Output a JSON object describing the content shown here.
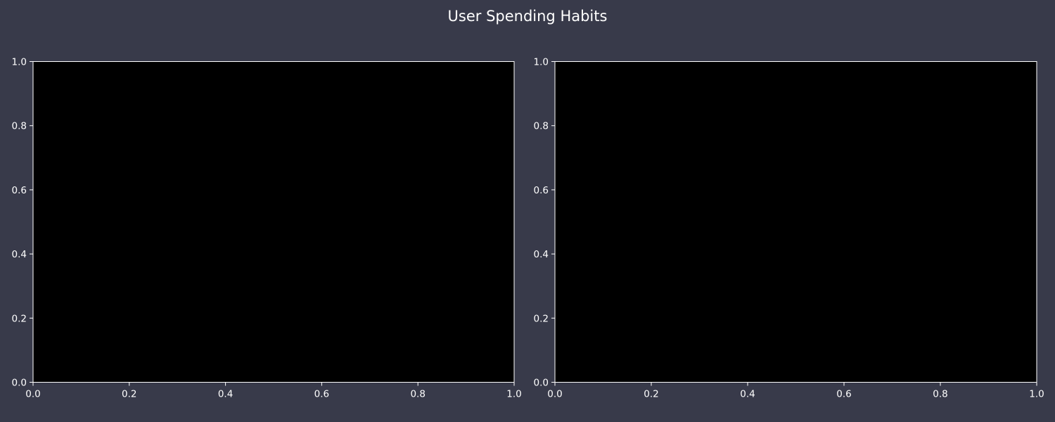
{
  "figure": {
    "title": "User Spending Habits",
    "background": "#383a4a",
    "axes_face": "#000000",
    "axes_edge": "#ffffff",
    "text_color": "#ffffff"
  },
  "chart_data": [
    {
      "type": "scatter",
      "title": "",
      "xlabel": "",
      "ylabel": "",
      "xlim": [
        0.0,
        1.0
      ],
      "ylim": [
        0.0,
        1.0
      ],
      "xticks": [
        "0.0",
        "0.2",
        "0.4",
        "0.6",
        "0.8",
        "1.0"
      ],
      "yticks": [
        "0.0",
        "0.2",
        "0.4",
        "0.6",
        "0.8",
        "1.0"
      ],
      "grid": false,
      "series": []
    },
    {
      "type": "scatter",
      "title": "",
      "xlabel": "",
      "ylabel": "",
      "xlim": [
        0.0,
        1.0
      ],
      "ylim": [
        0.0,
        1.0
      ],
      "xticks": [
        "0.0",
        "0.2",
        "0.4",
        "0.6",
        "0.8",
        "1.0"
      ],
      "yticks": [
        "0.0",
        "0.2",
        "0.4",
        "0.6",
        "0.8",
        "1.0"
      ],
      "grid": false,
      "series": []
    }
  ]
}
